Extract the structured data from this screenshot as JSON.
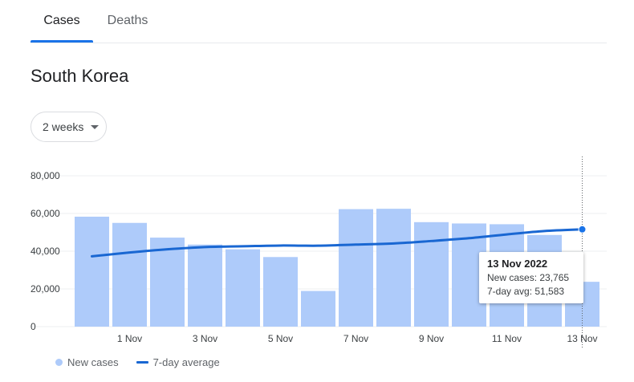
{
  "tabs": [
    {
      "label": "Cases",
      "active": true
    },
    {
      "label": "Deaths",
      "active": false
    }
  ],
  "region": {
    "title": "South Korea"
  },
  "range_select": {
    "value": "2 weeks"
  },
  "tooltip": {
    "date": "13 Nov 2022",
    "line1": "New cases: 23,765",
    "line2": "7-day avg: 51,583"
  },
  "legend": [
    {
      "label": "New cases",
      "color": "#aecbfa",
      "shape": "dot"
    },
    {
      "label": "7-day average",
      "color": "#1967d2",
      "shape": "line"
    }
  ],
  "colors": {
    "bar": "#aecbfa",
    "line": "#1967d2",
    "accent": "#1a73e8"
  },
  "chart_data": {
    "type": "bar",
    "title": "",
    "xlabel": "",
    "ylabel": "",
    "ylim": [
      0,
      80000
    ],
    "yticks": [
      0,
      20000,
      40000,
      60000,
      80000
    ],
    "ytick_labels": [
      "0",
      "20,000",
      "40,000",
      "60,000",
      "80,000"
    ],
    "grid": true,
    "categories": [
      "31 Oct",
      "1 Nov",
      "2 Nov",
      "3 Nov",
      "4 Nov",
      "5 Nov",
      "6 Nov",
      "7 Nov",
      "8 Nov",
      "9 Nov",
      "10 Nov",
      "11 Nov",
      "12 Nov",
      "13 Nov"
    ],
    "x_tick_labels": [
      {
        "index": 1,
        "label": "1 Nov"
      },
      {
        "index": 3,
        "label": "3 Nov"
      },
      {
        "index": 5,
        "label": "5 Nov"
      },
      {
        "index": 7,
        "label": "7 Nov"
      },
      {
        "index": 9,
        "label": "9 Nov"
      },
      {
        "index": 11,
        "label": "11 Nov"
      },
      {
        "index": 13,
        "label": "13 Nov"
      }
    ],
    "series": [
      {
        "name": "New cases",
        "type": "bar",
        "values": [
          58300,
          55000,
          47200,
          43500,
          41000,
          36900,
          18900,
          62300,
          62500,
          55400,
          54700,
          54300,
          48600,
          23765
        ]
      },
      {
        "name": "7-day average",
        "type": "line",
        "values": [
          37300,
          39300,
          41000,
          42200,
          42600,
          43000,
          42900,
          43500,
          44100,
          45400,
          46900,
          48900,
          50700,
          51583
        ]
      }
    ],
    "highlight_index": 13,
    "legend_position": "bottom-left"
  }
}
